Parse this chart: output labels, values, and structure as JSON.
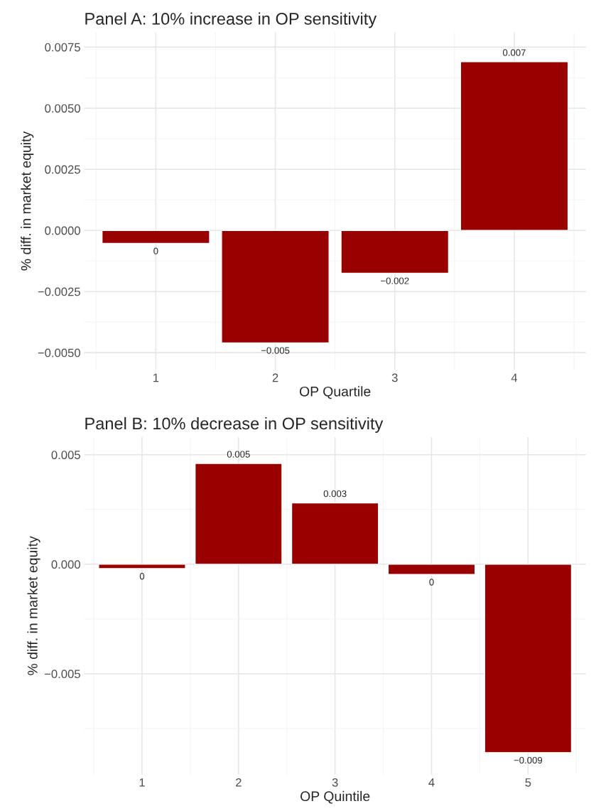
{
  "chart_data": [
    {
      "type": "bar",
      "title": "Panel A: 10% increase in OP sensitivity",
      "xlabel": "OP Quartile",
      "ylabel": "% diff. in market equity",
      "categories": [
        "1",
        "2",
        "3",
        "4"
      ],
      "series": [
        {
          "color": "#990000",
          "values": [
            -0.00053,
            -0.0046,
            -0.00175,
            0.0069
          ],
          "value_labels": [
            "0",
            "−0.005",
            "−0.002",
            "0.007"
          ]
        }
      ],
      "ylim": [
        -0.0057,
        0.0081
      ],
      "yticks": [
        {
          "value": -0.005,
          "label": "−0.0050"
        },
        {
          "value": -0.0025,
          "label": "−0.0025"
        },
        {
          "value": 0,
          "label": "0.0000"
        },
        {
          "value": 0.0025,
          "label": "0.0025"
        },
        {
          "value": 0.005,
          "label": "0.0050"
        },
        {
          "value": 0.0075,
          "label": "0.0075"
        }
      ],
      "grid": true,
      "legend": false
    },
    {
      "type": "bar",
      "title": "Panel B: 10% decrease in OP sensitivity",
      "xlabel": "OP Quintile",
      "ylabel": "% diff. in market equity",
      "categories": [
        "1",
        "2",
        "3",
        "4",
        "5"
      ],
      "series": [
        {
          "color": "#990000",
          "values": [
            -0.0002,
            0.0046,
            0.0028,
            -0.00047,
            -0.0086
          ],
          "value_labels": [
            "0",
            "0.005",
            "0.003",
            "0",
            "−0.009"
          ]
        }
      ],
      "ylim": [
        -0.0096,
        0.0058
      ],
      "yticks": [
        {
          "value": -0.005,
          "label": "−0.005"
        },
        {
          "value": 0,
          "label": "0.000"
        },
        {
          "value": 0.005,
          "label": "0.005"
        }
      ],
      "grid": true,
      "legend": false
    }
  ]
}
